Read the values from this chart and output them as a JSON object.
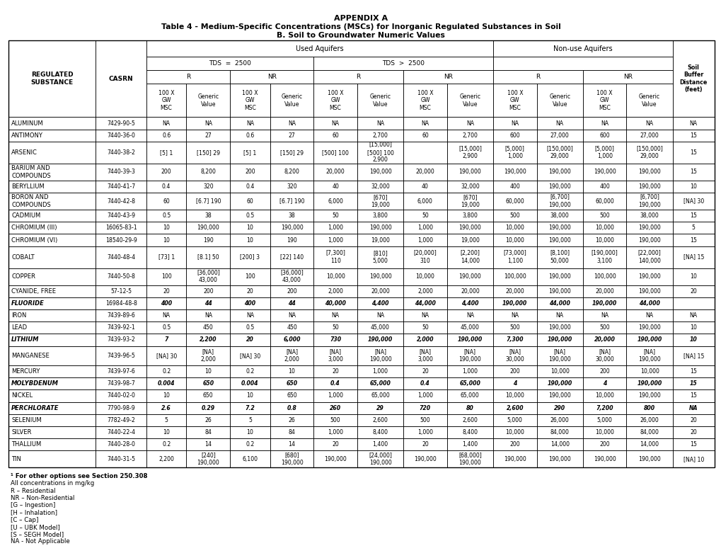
{
  "title1": "APPENDIX A",
  "title2": "Table 4 - Medium-Specific Concentrations (MSCs) for Inorganic Regulated Substances in Soil",
  "title3": "B. Soil to Groundwater Numeric Values",
  "rows": [
    {
      "name": "ALUMINUM",
      "casrn": "7429-90-5",
      "bold": false,
      "underline": false,
      "vals": [
        "NA",
        "NA",
        "NA",
        "NA",
        "NA",
        "NA",
        "NA",
        "NA",
        "NA",
        "NA",
        "NA",
        "NA",
        "NA"
      ]
    },
    {
      "name": "ANTIMONY",
      "casrn": "7440-36-0",
      "bold": false,
      "underline": false,
      "vals": [
        "0.6",
        "27",
        "0.6",
        "27",
        "60",
        "2,700",
        "60",
        "2,700",
        "600",
        "27,000",
        "600",
        "27,000",
        "15"
      ]
    },
    {
      "name": "ARSENIC",
      "casrn": "7440-38-2",
      "bold": false,
      "underline": true,
      "vals": [
        "[5] 1",
        "[150] 29",
        "[5] 1",
        "[150] 29",
        "[500] 100",
        "[15,000]\n[500] 100\n2,900",
        "",
        "[15,000]\n2,900",
        "[5,000]\n1,000",
        "[150,000]\n29,000",
        "[5,000]\n1,000",
        "[150,000]\n29,000",
        "15"
      ]
    },
    {
      "name": "BARIUM AND\nCOMPOUNDS",
      "casrn": "7440-39-3",
      "bold": false,
      "underline": false,
      "vals": [
        "200",
        "8,200",
        "200",
        "8,200",
        "20,000",
        "190,000",
        "20,000",
        "190,000",
        "190,000",
        "190,000",
        "190,000",
        "190,000",
        "15"
      ]
    },
    {
      "name": "BERYLLIUM",
      "casrn": "7440-41-7",
      "bold": false,
      "underline": false,
      "vals": [
        "0.4",
        "320",
        "0.4",
        "320",
        "40",
        "32,000",
        "40",
        "32,000",
        "400",
        "190,000",
        "400",
        "190,000",
        "10"
      ]
    },
    {
      "name": "BORON AND\nCOMPOUNDS",
      "casrn": "7440-42-8",
      "bold": false,
      "underline": false,
      "vals": [
        "60",
        "[6.7] 190",
        "60",
        "[6.7] 190",
        "6,000",
        "[670]\n19,000",
        "6,000",
        "[670]\n19,000",
        "60,000",
        "[6,700]\n190,000",
        "60,000",
        "[6,700]\n190,000",
        "[NA] 30"
      ]
    },
    {
      "name": "CADMIUM",
      "casrn": "7440-43-9",
      "bold": false,
      "underline": false,
      "vals": [
        "0.5",
        "38",
        "0.5",
        "38",
        "50",
        "3,800",
        "50",
        "3,800",
        "500",
        "38,000",
        "500",
        "38,000",
        "15"
      ]
    },
    {
      "name": "CHROMIUM (III)",
      "casrn": "16065-83-1",
      "bold": false,
      "underline": false,
      "vals": [
        "10",
        "190,000",
        "10",
        "190,000",
        "1,000",
        "190,000",
        "1,000",
        "190,000",
        "10,000",
        "190,000",
        "10,000",
        "190,000",
        "5"
      ]
    },
    {
      "name": "CHROMIUM (VI)",
      "casrn": "18540-29-9",
      "bold": false,
      "underline": false,
      "vals": [
        "10",
        "190",
        "10",
        "190",
        "1,000",
        "19,000",
        "1,000",
        "19,000",
        "10,000",
        "190,000",
        "10,000",
        "190,000",
        "15"
      ]
    },
    {
      "name": "COBALT",
      "casrn": "7440-48-4",
      "bold": false,
      "underline": true,
      "vals": [
        "[73] 1",
        "[8.1] 50",
        "[200] 3",
        "[22] 140",
        "[7,300]\n110",
        "[810]\n5,000",
        "[20,000]\n310",
        "[2,200]\n14,000",
        "[73,000]\n1,100",
        "[8,100]\n50,000",
        "[190,000]\n3,100",
        "[22,000]\n140,000",
        "[NA] 15"
      ]
    },
    {
      "name": "COPPER",
      "casrn": "7440-50-8",
      "bold": false,
      "underline": false,
      "vals": [
        "100",
        "[36,000]\n43,000",
        "100",
        "[36,000]\n43,000",
        "10,000",
        "190,000",
        "10,000",
        "190,000",
        "100,000",
        "190,000",
        "100,000",
        "190,000",
        "10"
      ]
    },
    {
      "name": "CYANIDE, FREE",
      "casrn": "57-12-5",
      "bold": false,
      "underline": false,
      "vals": [
        "20",
        "200",
        "20",
        "200",
        "2,000",
        "20,000",
        "2,000",
        "20,000",
        "20,000",
        "190,000",
        "20,000",
        "190,000",
        "20"
      ]
    },
    {
      "name": "FLUORIDE",
      "casrn": "16984-48-8",
      "bold": true,
      "underline": false,
      "vals": [
        "400",
        "44",
        "400",
        "44",
        "40,000",
        "4,400",
        "44,000",
        "4,400",
        "190,000",
        "44,000",
        "190,000",
        "44,000",
        ""
      ]
    },
    {
      "name": "IRON",
      "casrn": "7439-89-6",
      "bold": false,
      "underline": false,
      "vals": [
        "NA",
        "NA",
        "NA",
        "NA",
        "NA",
        "NA",
        "NA",
        "NA",
        "NA",
        "NA",
        "NA",
        "NA",
        "NA"
      ]
    },
    {
      "name": "LEAD",
      "casrn": "7439-92-1",
      "bold": false,
      "underline": false,
      "vals": [
        "0.5",
        "450",
        "0.5",
        "450",
        "50",
        "45,000",
        "50",
        "45,000",
        "500",
        "190,000",
        "500",
        "190,000",
        "10"
      ]
    },
    {
      "name": "LITHIUM",
      "casrn": "7439-93-2",
      "bold": true,
      "underline": false,
      "vals": [
        "7",
        "2,200",
        "20",
        "6,000",
        "730",
        "190,000",
        "2,000",
        "190,000",
        "7,300",
        "190,000",
        "20,000",
        "190,000",
        "10"
      ]
    },
    {
      "name": "MANGANESE",
      "casrn": "7439-96-5",
      "bold": false,
      "underline": false,
      "vals": [
        "[NA] 30",
        "[NA]\n2,000",
        "[NA] 30",
        "[NA]\n2,000",
        "[NA]\n3,000",
        "[NA]\n190,000",
        "[NA]\n3,000",
        "[NA]\n190,000",
        "[NA]\n30,000",
        "[NA]\n190,000",
        "[NA]\n30,000",
        "[NA]\n190,000",
        "[NA] 15"
      ]
    },
    {
      "name": "MERCURY",
      "casrn": "7439-97-6",
      "bold": false,
      "underline": false,
      "vals": [
        "0.2",
        "10",
        "0.2",
        "10",
        "20",
        "1,000",
        "20",
        "1,000",
        "200",
        "10,000",
        "200",
        "10,000",
        "15"
      ]
    },
    {
      "name": "MOLYBDENUM",
      "casrn": "7439-98-7",
      "bold": true,
      "underline": false,
      "vals": [
        "0.004",
        "650",
        "0.004",
        "650",
        "0.4",
        "65,000",
        "0.4",
        "65,000",
        "4",
        "190,000",
        "4",
        "190,000",
        "15"
      ]
    },
    {
      "name": "NICKEL",
      "casrn": "7440-02-0",
      "bold": false,
      "underline": false,
      "vals": [
        "10",
        "650",
        "10",
        "650",
        "1,000",
        "65,000",
        "1,000",
        "65,000",
        "10,000",
        "190,000",
        "10,000",
        "190,000",
        "15"
      ]
    },
    {
      "name": "PERCHLORATE",
      "casrn": "7790-98-9",
      "bold": true,
      "underline": true,
      "vals": [
        "2.6",
        "0.29",
        "7.2",
        "0.8",
        "260",
        "29",
        "720",
        "80",
        "2,600",
        "290",
        "7,200",
        "800",
        "NA"
      ]
    },
    {
      "name": "SELENIUM",
      "casrn": "7782-49-2",
      "bold": false,
      "underline": false,
      "vals": [
        "5",
        "26",
        "5",
        "26",
        "500",
        "2,600",
        "500",
        "2,600",
        "5,000",
        "26,000",
        "5,000",
        "26,000",
        "20"
      ]
    },
    {
      "name": "SILVER",
      "casrn": "7440-22-4",
      "bold": false,
      "underline": false,
      "vals": [
        "10",
        "84",
        "10",
        "84",
        "1,000",
        "8,400",
        "1,000",
        "8,400",
        "10,000",
        "84,000",
        "10,000",
        "84,000",
        "20"
      ]
    },
    {
      "name": "THALLIUM",
      "casrn": "7440-28-0",
      "bold": false,
      "underline": false,
      "vals": [
        "0.2",
        "14",
        "0.2",
        "14",
        "20",
        "1,400",
        "20",
        "1,400",
        "200",
        "14,000",
        "200",
        "14,000",
        "15"
      ]
    },
    {
      "name": "TIN",
      "casrn": "7440-31-5",
      "bold": false,
      "underline": false,
      "vals": [
        "2,200",
        "[240]\n190,000",
        "6,100",
        "[680]\n190,000",
        "190,000",
        "[24,000]\n190,000",
        "190,000",
        "[68,000]\n190,000",
        "190,000",
        "190,000",
        "190,000",
        "190,000",
        "[NA] 10"
      ]
    }
  ],
  "footnotes": [
    [
      "¹",
      " For other options see Section 250.308",
      true
    ],
    [
      "",
      "All concentrations in mg/kg",
      false
    ],
    [
      "",
      "R – Residential",
      false
    ],
    [
      "",
      "NR – Non-Residential",
      false
    ],
    [
      "",
      "[G – Ingestion]",
      false
    ],
    [
      "",
      "[H – Inhalation]",
      false
    ],
    [
      "",
      "[C – Cap]",
      false
    ],
    [
      "",
      "[U – UBK Model]",
      false
    ],
    [
      "",
      "[S – SEGH Model]",
      false
    ],
    [
      "",
      "NA - Not Applicable",
      false
    ]
  ]
}
